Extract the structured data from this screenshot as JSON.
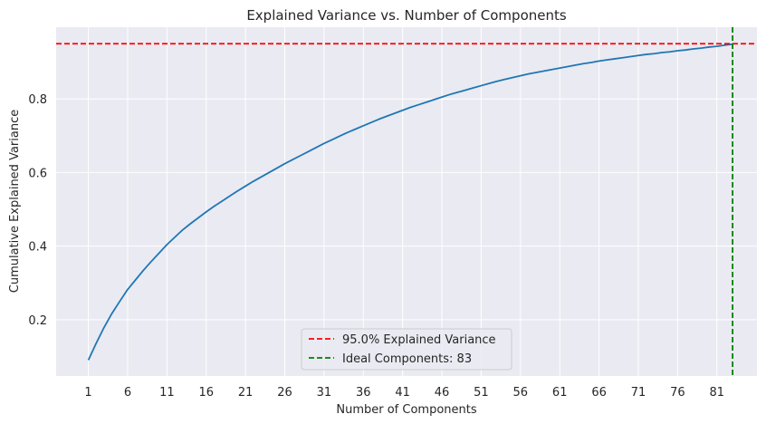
{
  "chart_data": {
    "type": "line",
    "title": "Explained Variance vs. Number of Components",
    "xlabel": "Number of Components",
    "ylabel": "Cumulative Explained Variance",
    "xlim": [
      -3.1,
      86.1
    ],
    "ylim": [
      0.047,
      0.995
    ],
    "x_ticks": [
      1,
      6,
      11,
      16,
      21,
      26,
      31,
      36,
      41,
      46,
      51,
      56,
      61,
      66,
      71,
      76,
      81
    ],
    "y_ticks": [
      0.2,
      0.4,
      0.6,
      0.8
    ],
    "grid": true,
    "legend_placement": "lower center",
    "colors": {
      "background": "#eaeaf2",
      "grid": "#ffffff",
      "line": "#1f77b4",
      "threshold": "#ff0000",
      "ideal": "#008000"
    },
    "series": [
      {
        "x": [
          1,
          2,
          3,
          4,
          5,
          6,
          7,
          8,
          9,
          10,
          11,
          12,
          13,
          14,
          15,
          16,
          17,
          18,
          19,
          20,
          21,
          22,
          23,
          24,
          25,
          26,
          27,
          28,
          29,
          30,
          31,
          32,
          33,
          34,
          35,
          36,
          37,
          38,
          39,
          40,
          41,
          42,
          43,
          44,
          45,
          46,
          47,
          48,
          49,
          50,
          51,
          52,
          53,
          54,
          55,
          56,
          57,
          58,
          59,
          60,
          61,
          62,
          63,
          64,
          65,
          66,
          67,
          68,
          69,
          70,
          71,
          72,
          73,
          74,
          75,
          76,
          77,
          78,
          79,
          80,
          81,
          82,
          83
        ],
        "values": [
          0.09,
          0.136,
          0.179,
          0.217,
          0.25,
          0.282,
          0.308,
          0.334,
          0.358,
          0.381,
          0.404,
          0.424,
          0.444,
          0.461,
          0.477,
          0.493,
          0.508,
          0.522,
          0.536,
          0.55,
          0.563,
          0.576,
          0.588,
          0.6,
          0.612,
          0.624,
          0.635,
          0.646,
          0.657,
          0.668,
          0.679,
          0.689,
          0.699,
          0.709,
          0.718,
          0.727,
          0.736,
          0.745,
          0.753,
          0.761,
          0.769,
          0.777,
          0.784,
          0.791,
          0.798,
          0.805,
          0.812,
          0.818,
          0.824,
          0.83,
          0.836,
          0.842,
          0.848,
          0.853,
          0.858,
          0.863,
          0.868,
          0.872,
          0.876,
          0.88,
          0.884,
          0.888,
          0.892,
          0.896,
          0.899,
          0.903,
          0.906,
          0.909,
          0.912,
          0.915,
          0.918,
          0.921,
          0.923,
          0.926,
          0.928,
          0.931,
          0.933,
          0.936,
          0.938,
          0.941,
          0.943,
          0.946,
          0.949
        ]
      }
    ],
    "hlines": [
      {
        "y": 0.95,
        "style": "dashed",
        "color": "#ff0000",
        "label": "95.0% Explained Variance"
      }
    ],
    "vlines": [
      {
        "x": 83,
        "style": "dashed",
        "color": "#008000",
        "label": "Ideal Components: 83"
      }
    ]
  }
}
